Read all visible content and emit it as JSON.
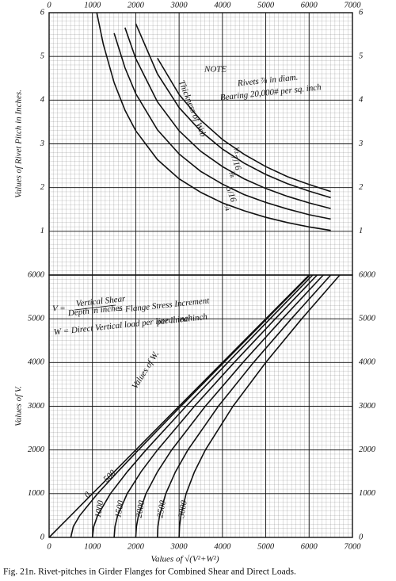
{
  "caption": "Fig. 21n.  Rivet-pitches in Girder Flanges for Combined Shear and Direct Loads.",
  "chart_data": [
    {
      "type": "line",
      "y_label": "Values of Rivet Pitch in Inches.",
      "xlim": [
        0,
        7000
      ],
      "xticks": [
        0,
        1000,
        2000,
        3000,
        4000,
        5000,
        6000,
        7000
      ],
      "ylim": [
        0,
        6
      ],
      "yticks": [
        1,
        2,
        3,
        4,
        5,
        6
      ],
      "grid": true,
      "color": "#111",
      "x": [
        1100,
        1250,
        1500,
        1750,
        2000,
        2500,
        3000,
        3500,
        4000,
        4500,
        5000,
        5500,
        6000,
        6500
      ],
      "series": [
        {
          "name": "¼",
          "values": [
            6.0,
            5.28,
            4.4,
            3.77,
            3.3,
            2.64,
            2.2,
            1.89,
            1.65,
            1.47,
            1.32,
            1.2,
            1.1,
            1.02
          ]
        },
        {
          "name": "5/16",
          "values": [
            null,
            null,
            5.53,
            4.74,
            4.15,
            3.32,
            2.77,
            2.37,
            2.08,
            1.84,
            1.66,
            1.51,
            1.38,
            1.28
          ]
        },
        {
          "name": "⅜",
          "values": [
            null,
            null,
            null,
            5.66,
            4.95,
            3.96,
            3.3,
            2.83,
            2.48,
            2.2,
            1.98,
            1.8,
            1.65,
            1.52
          ]
        },
        {
          "name": "7/16",
          "values": [
            null,
            null,
            null,
            null,
            5.75,
            4.6,
            3.83,
            3.29,
            2.88,
            2.56,
            2.3,
            2.09,
            1.92,
            1.77
          ]
        },
        {
          "name": "½",
          "values": [
            null,
            null,
            null,
            null,
            null,
            4.96,
            4.13,
            3.54,
            3.1,
            2.76,
            2.48,
            2.25,
            2.07,
            1.91
          ]
        }
      ],
      "annotations": [
        "NOTE",
        "Rivets ⅞ in diam.",
        "Bearing 20,000# per sq. inch",
        "Thickness of Web"
      ]
    },
    {
      "type": "line",
      "y_label": "Values of V.",
      "x_label": "Values of √(V²+W²)",
      "xlim": [
        0,
        7000
      ],
      "xticks": [
        0,
        1000,
        2000,
        3000,
        4000,
        5000,
        6000,
        7000
      ],
      "ylim": [
        0,
        6000
      ],
      "yticks": [
        0,
        1000,
        2000,
        3000,
        4000,
        5000,
        6000
      ],
      "grid": true,
      "color": "#111",
      "series": [
        {
          "name": "0",
          "x": [
            0,
            250,
            500,
            1000,
            1500,
            2000,
            3000,
            4000,
            5000,
            6000
          ],
          "values": [
            0,
            250,
            500,
            1000,
            1500,
            2000,
            3000,
            4000,
            5000,
            6000
          ]
        },
        {
          "name": "500",
          "x": [
            500,
            559,
            707,
            1118,
            1581,
            2062,
            3041,
            4031,
            5025,
            6021
          ],
          "values": [
            0,
            250,
            500,
            1000,
            1500,
            2000,
            3000,
            4000,
            5000,
            6000
          ]
        },
        {
          "name": "1000",
          "x": [
            1000,
            1031,
            1118,
            1414,
            1803,
            2236,
            3162,
            4123,
            5099,
            6083
          ],
          "values": [
            0,
            250,
            500,
            1000,
            1500,
            2000,
            3000,
            4000,
            5000,
            6000
          ]
        },
        {
          "name": "1500",
          "x": [
            1500,
            1521,
            1581,
            1803,
            2121,
            2500,
            3354,
            4272,
            5220,
            6185
          ],
          "values": [
            0,
            250,
            500,
            1000,
            1500,
            2000,
            3000,
            4000,
            5000,
            6000
          ]
        },
        {
          "name": "2000",
          "x": [
            2000,
            2016,
            2062,
            2236,
            2500,
            2828,
            3606,
            4472,
            5385,
            6325
          ],
          "values": [
            0,
            250,
            500,
            1000,
            1500,
            2000,
            3000,
            4000,
            5000,
            6000
          ]
        },
        {
          "name": "2500",
          "x": [
            2500,
            2512,
            2550,
            2693,
            2915,
            3202,
            3905,
            4717,
            5590,
            6500
          ],
          "values": [
            0,
            250,
            500,
            1000,
            1500,
            2000,
            3000,
            4000,
            5000,
            6000
          ]
        },
        {
          "name": "3000",
          "x": [
            3000,
            3010,
            3041,
            3162,
            3354,
            3606,
            4243,
            5000,
            5831,
            6708
          ],
          "values": [
            0,
            250,
            500,
            1000,
            1500,
            2000,
            3000,
            4000,
            5000,
            6000
          ]
        }
      ],
      "annotations": [
        "V =",
        "Vertical Shear",
        "Depth in inches",
        "= Flange Stress Increment",
        "per lineal inch",
        "W = Direct Vertical load per lineal inch",
        "Values of W."
      ]
    }
  ]
}
